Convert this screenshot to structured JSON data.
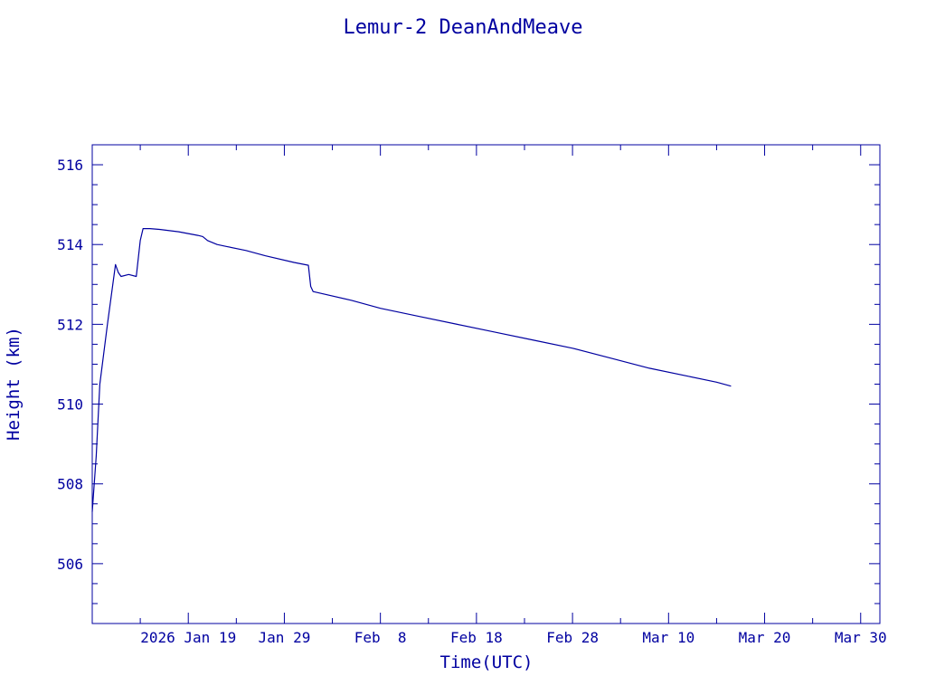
{
  "chart_data": {
    "type": "line",
    "title": "Lemur-2 DeanAndMeave",
    "xlabel": "Time(UTC)",
    "ylabel": "Height (km)",
    "color": "#0000a0",
    "xlim": [
      "2026-01-09",
      "2026-04-01"
    ],
    "ylim": [
      504.5,
      516.5
    ],
    "y_ticks": [
      506,
      508,
      510,
      512,
      514,
      516
    ],
    "x_ticks": [
      {
        "date": "2026-01-19",
        "label": "2026 Jan 19"
      },
      {
        "date": "2026-01-29",
        "label": "Jan 29"
      },
      {
        "date": "2026-02-08",
        "label": "Feb  8"
      },
      {
        "date": "2026-02-18",
        "label": "Feb 18"
      },
      {
        "date": "2026-02-28",
        "label": "Feb 28"
      },
      {
        "date": "2026-03-10",
        "label": "Mar 10"
      },
      {
        "date": "2026-03-20",
        "label": "Mar 20"
      },
      {
        "date": "2026-03-30",
        "label": "Mar 30"
      }
    ],
    "grid": false,
    "series": [
      {
        "x": [
          "2026-01-09 00:00",
          "2026-01-09 10:00",
          "2026-01-09 19:00",
          "2026-01-10 14:00",
          "2026-01-11 10:00",
          "2026-01-11 17:00",
          "2026-01-12 00:00",
          "2026-01-12 19:00",
          "2026-01-13 14:00",
          "2026-01-14 00:00",
          "2026-01-14 07:00",
          "2026-01-15 00:00",
          "2026-01-16 00:00",
          "2026-01-18 00:00",
          "2026-01-20 00:00",
          "2026-01-20 12:00",
          "2026-01-21 00:00",
          "2026-01-22 00:00",
          "2026-01-23 00:00",
          "2026-01-25 00:00",
          "2026-01-27 00:00",
          "2026-01-30 00:00",
          "2026-01-31 12:00",
          "2026-01-31 18:00",
          "2026-02-01 00:00",
          "2026-02-05 00:00",
          "2026-02-08 00:00",
          "2026-02-12 00:00",
          "2026-02-16 00:00",
          "2026-02-20 00:00",
          "2026-02-24 00:00",
          "2026-02-28 00:00",
          "2026-03-04 00:00",
          "2026-03-08 00:00",
          "2026-03-12 00:00",
          "2026-03-15 00:00",
          "2026-03-16 12:00"
        ],
        "y": [
          507.3,
          508.7,
          510.5,
          512.0,
          513.5,
          513.3,
          513.2,
          513.25,
          513.2,
          514.1,
          514.4,
          514.4,
          514.38,
          514.32,
          514.23,
          514.2,
          514.1,
          514.0,
          513.95,
          513.85,
          513.72,
          513.55,
          513.48,
          512.95,
          512.82,
          512.6,
          512.4,
          512.2,
          512.0,
          511.8,
          511.6,
          511.4,
          511.15,
          510.9,
          510.7,
          510.55,
          510.45
        ]
      }
    ]
  }
}
